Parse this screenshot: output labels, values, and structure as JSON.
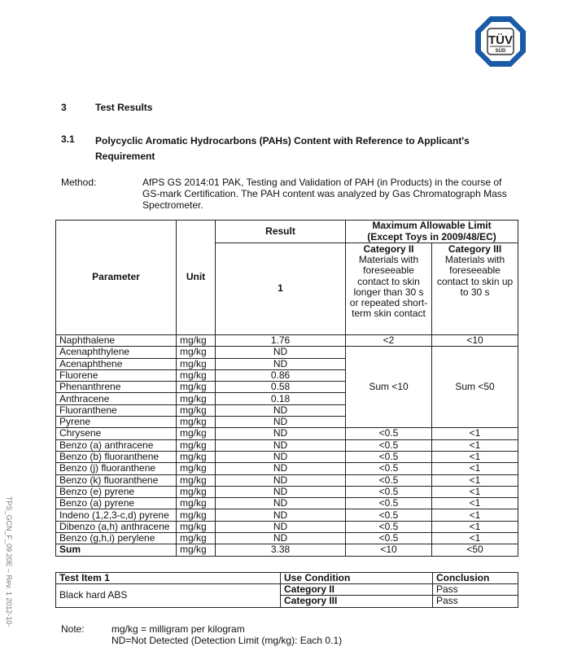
{
  "logo": {
    "text_top": "TÜV",
    "text_bottom": "SÜD",
    "color": "#1a5aa6"
  },
  "section": {
    "number": "3",
    "title": "Test Results"
  },
  "subsection": {
    "number": "3.1",
    "title_line1": "Polycyclic Aromatic Hydrocarbons (PAHs) Content with Reference to Applicant's",
    "title_line2": "Requirement"
  },
  "method": {
    "label": "Method:",
    "line1": "AfPS GS 2014:01 PAK, Testing and Validation of PAH (in Products) in the course of",
    "line2": "GS-mark Certification. The PAH content was analyzed by Gas Chromatograph Mass",
    "line3": "Spectrometer."
  },
  "table": {
    "h_parameter": "Parameter",
    "h_unit": "Unit",
    "h_result": "Result",
    "h_result_sub": "1",
    "h_limit": "Maximum Allowable Limit",
    "h_limit2": "(Except Toys in 2009/48/EC)",
    "cat2_title": "Category II",
    "cat2_desc": "Materials with foreseeable contact to skin longer than 30 s or repeated short-term skin contact",
    "cat3_title": "Category III",
    "cat3_desc": "Materials with foreseeable contact to skin up to 30 s",
    "rows": [
      {
        "p": "Naphthalene",
        "u": "mg/kg",
        "r": "1.76",
        "c2": "<2",
        "c3": "<10"
      },
      {
        "p": "Acenaphthylene",
        "u": "mg/kg",
        "r": "ND"
      },
      {
        "p": "Acenaphthene",
        "u": "mg/kg",
        "r": "ND"
      },
      {
        "p": "Fluorene",
        "u": "mg/kg",
        "r": "0.86"
      },
      {
        "p": "Phenanthrene",
        "u": "mg/kg",
        "r": "0.58"
      },
      {
        "p": "Anthracene",
        "u": "mg/kg",
        "r": "0.18"
      },
      {
        "p": "Fluoranthene",
        "u": "mg/kg",
        "r": "ND"
      },
      {
        "p": "Pyrene",
        "u": "mg/kg",
        "r": "ND"
      },
      {
        "p": "Chrysene",
        "u": "mg/kg",
        "r": "ND",
        "c2": "<0.5",
        "c3": "<1"
      },
      {
        "p": "Benzo (a) anthracene",
        "u": "mg/kg",
        "r": "ND",
        "c2": "<0.5",
        "c3": "<1"
      },
      {
        "p": "Benzo (b) fluoranthene",
        "u": "mg/kg",
        "r": "ND",
        "c2": "<0.5",
        "c3": "<1"
      },
      {
        "p": "Benzo (j) fluoranthene",
        "u": "mg/kg",
        "r": "ND",
        "c2": "<0.5",
        "c3": "<1"
      },
      {
        "p": "Benzo (k) fluoranthene",
        "u": "mg/kg",
        "r": "ND",
        "c2": "<0.5",
        "c3": "<1"
      },
      {
        "p": "Benzo (e) pyrene",
        "u": "mg/kg",
        "r": "ND",
        "c2": "<0.5",
        "c3": "<1"
      },
      {
        "p": "Benzo (a) pyrene",
        "u": "mg/kg",
        "r": "ND",
        "c2": "<0.5",
        "c3": "<1"
      },
      {
        "p": "Indeno (1,2,3-c,d) pyrene",
        "u": "mg/kg",
        "r": "ND",
        "c2": "<0.5",
        "c3": "<1"
      },
      {
        "p": "Dibenzo (a,h) anthracene",
        "u": "mg/kg",
        "r": "ND",
        "c2": "<0.5",
        "c3": "<1"
      },
      {
        "p": "Benzo (g,h,i) perylene",
        "u": "mg/kg",
        "r": "ND",
        "c2": "<0.5",
        "c3": "<1"
      },
      {
        "p": "Sum",
        "u": "mg/kg",
        "r": "3.38",
        "c2": "<10",
        "c3": "<50"
      }
    ],
    "group_c2": "Sum <10",
    "group_c3": "Sum <50"
  },
  "conclusion": {
    "h_item": "Test Item 1",
    "h_use": "Use Condition",
    "h_concl": "Conclusion",
    "item": "Black hard ABS",
    "rows": [
      {
        "use": "Category II",
        "result": "Pass"
      },
      {
        "use": "Category III",
        "result": "Pass"
      }
    ]
  },
  "note": {
    "label": "Note:",
    "line1": "mg/kg = milligram per kilogram",
    "line2": "ND=Not Detected (Detection Limit (mg/kg): Each 0.1)"
  },
  "side_text": "TPS_GCN_F_09.20E – Rev. 1     2012-10-"
}
